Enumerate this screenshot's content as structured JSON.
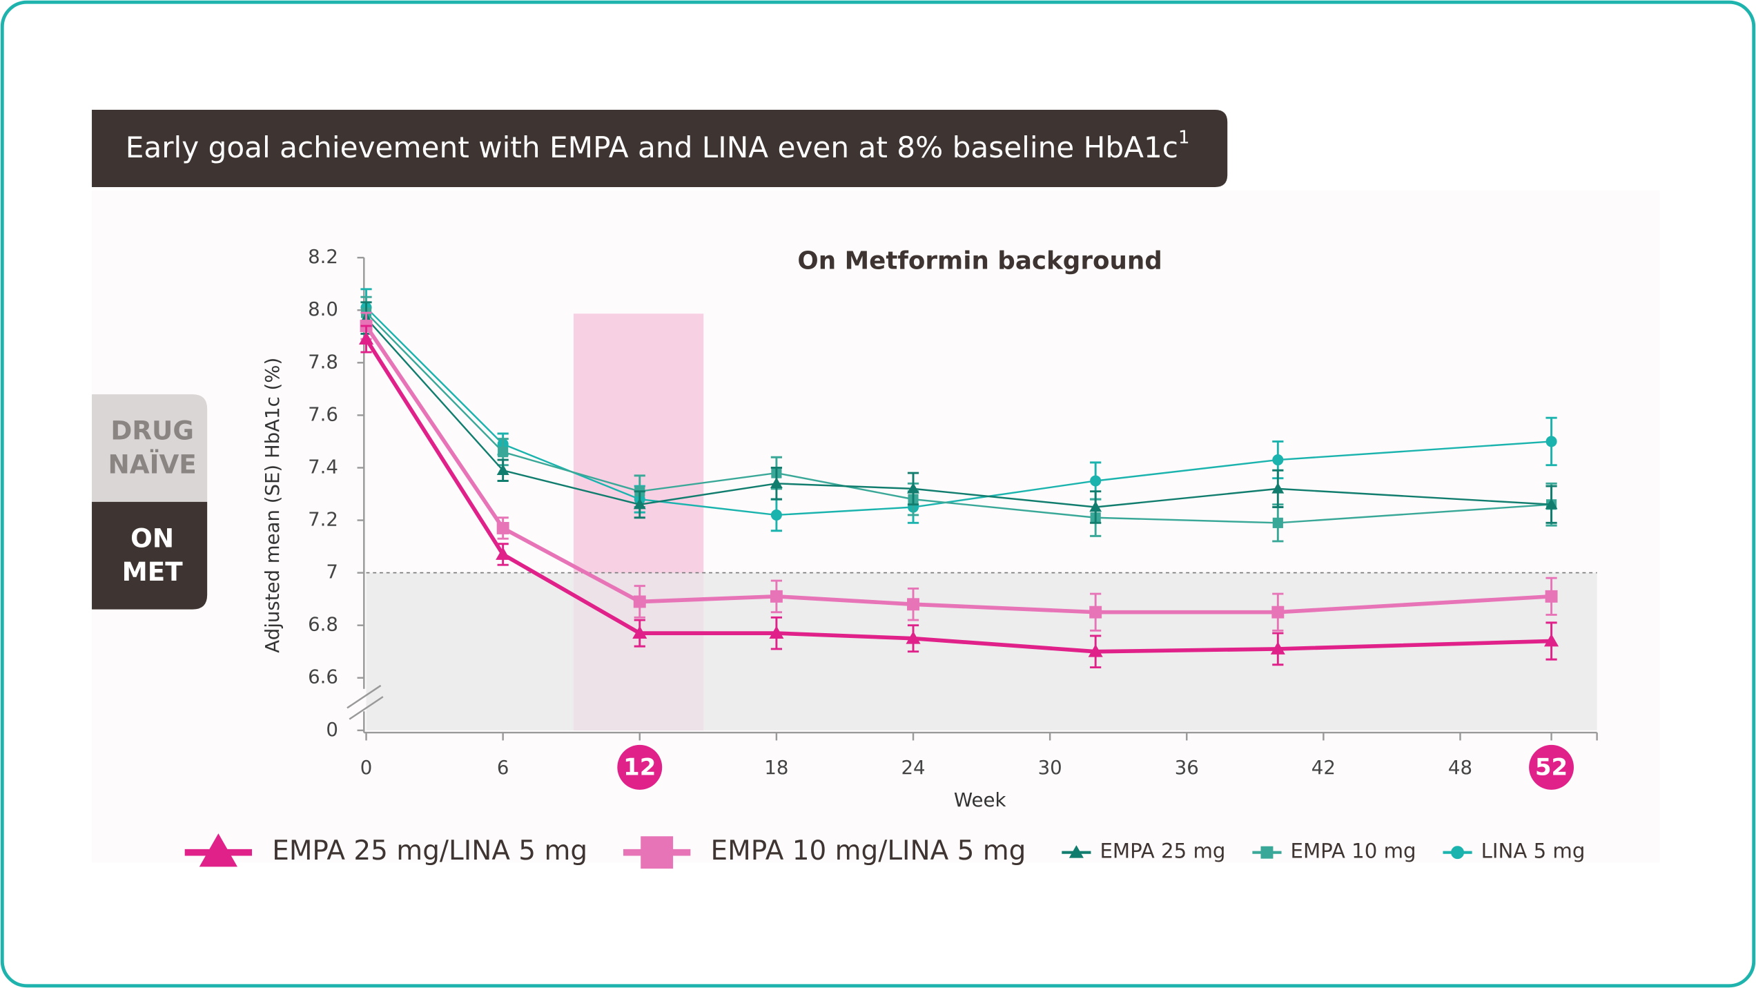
{
  "header": {
    "title": "Early goal achievement with EMPA and LINA even at 8% baseline HbA1c",
    "superscript": "1"
  },
  "tabs": [
    {
      "lines": [
        "DRUG",
        "NAÏVE"
      ],
      "active": false
    },
    {
      "lines": [
        "ON",
        "MET"
      ],
      "active": true
    }
  ],
  "chart_data": {
    "type": "line",
    "title": "On Metformin background",
    "x_label": "Week",
    "y_label": "Adjusted mean (SE) HbA1c (%)",
    "x": [
      0,
      6,
      12,
      18,
      24,
      32,
      40,
      52
    ],
    "xlim": [
      0,
      54
    ],
    "xticks": [
      0,
      6,
      12,
      18,
      24,
      30,
      36,
      42,
      48,
      52
    ],
    "highlight_ticks": [
      12,
      52
    ],
    "highlight_range": [
      9.1,
      14.8
    ],
    "ylim": [
      6.4,
      8.2
    ],
    "yticks": [
      0,
      6.6,
      6.8,
      7,
      7.2,
      7.4,
      7.6,
      7.8,
      {
        "value": 8,
        "label": "8.0"
      },
      8.2
    ],
    "threshold": 7,
    "series": [
      {
        "name": "EMPA 25 mg/LINA 5 mg",
        "color": "#e0218a",
        "marker": "triangle",
        "line_width": 3.5,
        "values": [
          7.89,
          7.07,
          6.77,
          6.77,
          6.75,
          6.7,
          6.71,
          6.74
        ],
        "errors": [
          0.05,
          0.04,
          0.05,
          0.06,
          0.05,
          0.06,
          0.06,
          0.07
        ]
      },
      {
        "name": "EMPA 10 mg/LINA 5 mg",
        "color": "#e874b8",
        "marker": "square",
        "line_width": 3.5,
        "values": [
          7.94,
          7.17,
          6.89,
          6.91,
          6.88,
          6.85,
          6.85,
          6.91
        ],
        "errors": [
          0.05,
          0.04,
          0.06,
          0.06,
          0.06,
          0.07,
          0.07,
          0.07
        ]
      },
      {
        "name": "EMPA 25 mg",
        "color": "#117d6e",
        "marker": "triangle",
        "line_width": 1.5,
        "values": [
          7.97,
          7.39,
          7.26,
          7.34,
          7.32,
          7.25,
          7.32,
          7.26
        ],
        "errors": [
          0.06,
          0.04,
          0.05,
          0.06,
          0.06,
          0.06,
          0.07,
          0.07
        ]
      },
      {
        "name": "EMPA 10 mg",
        "color": "#3aa898",
        "marker": "square",
        "line_width": 1.5,
        "values": [
          7.99,
          7.46,
          7.31,
          7.38,
          7.28,
          7.21,
          7.19,
          7.26
        ],
        "errors": [
          0.06,
          0.05,
          0.06,
          0.06,
          0.06,
          0.07,
          0.07,
          0.08
        ]
      },
      {
        "name": "LINA 5 mg",
        "color": "#1bb3ae",
        "marker": "circle",
        "line_width": 1.5,
        "values": [
          8.01,
          7.49,
          7.28,
          7.22,
          7.25,
          7.35,
          7.43,
          7.5
        ],
        "errors": [
          0.07,
          0.04,
          0.05,
          0.06,
          0.06,
          0.07,
          0.07,
          0.09
        ]
      }
    ]
  }
}
